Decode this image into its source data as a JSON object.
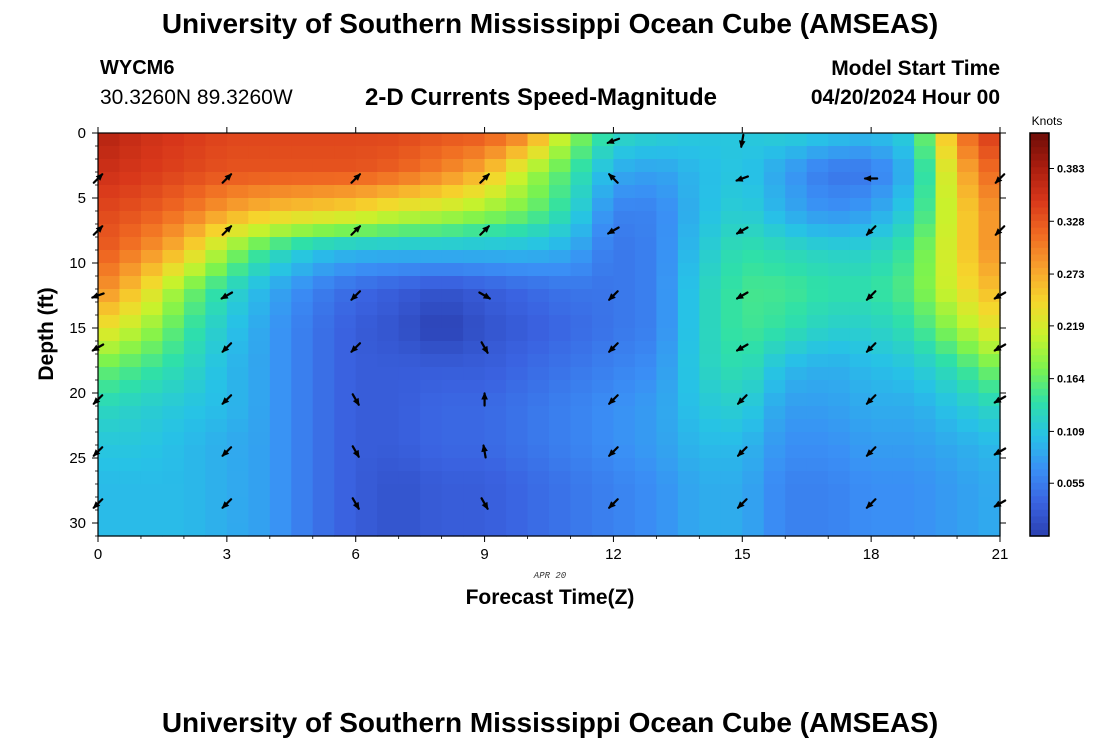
{
  "header": {
    "title": "University of Southern Mississippi Ocean Cube (AMSEAS)",
    "station_id": "WYCM6",
    "station_coords": "30.3260N  89.3260W",
    "subtitle": "2-D Currents Speed-Magnitude",
    "model_start_label": "Model Start Time",
    "model_start_value": "04/20/2024 Hour 00"
  },
  "footer": {
    "title": "University of Southern Mississippi Ocean Cube (AMSEAS)"
  },
  "chart_data": {
    "type": "heatmap",
    "title": "2-D Currents Speed-Magnitude",
    "xlabel": "Forecast Time(Z)",
    "ylabel": "Depth (ft)",
    "date_label": "APR 20",
    "x_range": [
      0,
      21
    ],
    "y_range": [
      0,
      31
    ],
    "x_ticks": [
      0,
      3,
      6,
      9,
      12,
      15,
      18,
      21
    ],
    "y_ticks": [
      0,
      5,
      10,
      15,
      20,
      25,
      30
    ],
    "x_tick_labels": [
      "0",
      "3",
      "6",
      "9",
      "12",
      "15",
      "18",
      "21"
    ],
    "y_tick_labels": [
      "0",
      "5",
      "10",
      "15",
      "20",
      "25",
      "30"
    ],
    "colorbar": {
      "title": "Knots",
      "range": [
        0.0,
        0.42
      ],
      "ticks": [
        0.055,
        0.109,
        0.164,
        0.219,
        0.273,
        0.328,
        0.383
      ],
      "tick_labels": [
        "0.055",
        "0.109",
        "0.164",
        "0.219",
        "0.273",
        "0.328",
        "0.383"
      ]
    },
    "colormap": [
      "#2a3fb0",
      "#3a62e0",
      "#3a8ff5",
      "#27c2e6",
      "#2fe0a8",
      "#7cf34e",
      "#c8f22c",
      "#f6d62c",
      "#f7a12d",
      "#f06a22",
      "#d8371a",
      "#a91d0f",
      "#6e0d08"
    ],
    "grid_times": [
      0,
      1,
      2,
      3,
      4,
      5,
      6,
      7,
      8,
      9,
      10,
      11,
      12,
      13,
      14,
      15,
      16,
      17,
      18,
      19,
      20,
      21
    ],
    "grid_depths": [
      0,
      3,
      6,
      9,
      12,
      15,
      18,
      21,
      24,
      27,
      30
    ],
    "speed_knots": [
      [
        0.38,
        0.36,
        0.35,
        0.34,
        0.34,
        0.34,
        0.34,
        0.34,
        0.33,
        0.33,
        0.3,
        0.19,
        0.13,
        0.12,
        0.11,
        0.11,
        0.12,
        0.11,
        0.1,
        0.12,
        0.3,
        0.36
      ],
      [
        0.36,
        0.35,
        0.34,
        0.33,
        0.33,
        0.33,
        0.33,
        0.32,
        0.3,
        0.27,
        0.2,
        0.15,
        0.09,
        0.08,
        0.1,
        0.11,
        0.08,
        0.05,
        0.05,
        0.1,
        0.26,
        0.33
      ],
      [
        0.34,
        0.33,
        0.31,
        0.28,
        0.26,
        0.25,
        0.24,
        0.22,
        0.21,
        0.19,
        0.17,
        0.13,
        0.06,
        0.06,
        0.1,
        0.12,
        0.09,
        0.07,
        0.08,
        0.12,
        0.24,
        0.3
      ],
      [
        0.33,
        0.3,
        0.26,
        0.19,
        0.14,
        0.11,
        0.1,
        0.1,
        0.1,
        0.1,
        0.1,
        0.09,
        0.05,
        0.06,
        0.11,
        0.14,
        0.13,
        0.12,
        0.12,
        0.15,
        0.24,
        0.3
      ],
      [
        0.3,
        0.25,
        0.18,
        0.13,
        0.09,
        0.06,
        0.04,
        0.03,
        0.02,
        0.03,
        0.04,
        0.05,
        0.05,
        0.06,
        0.12,
        0.15,
        0.15,
        0.14,
        0.14,
        0.16,
        0.23,
        0.27
      ],
      [
        0.24,
        0.2,
        0.15,
        0.11,
        0.08,
        0.05,
        0.03,
        0.02,
        0.0,
        0.02,
        0.03,
        0.04,
        0.05,
        0.06,
        0.12,
        0.15,
        0.14,
        0.12,
        0.12,
        0.14,
        0.19,
        0.24
      ],
      [
        0.17,
        0.15,
        0.13,
        0.1,
        0.08,
        0.05,
        0.03,
        0.03,
        0.03,
        0.03,
        0.04,
        0.05,
        0.06,
        0.07,
        0.12,
        0.14,
        0.1,
        0.09,
        0.1,
        0.11,
        0.14,
        0.18
      ],
      [
        0.13,
        0.12,
        0.11,
        0.1,
        0.08,
        0.05,
        0.03,
        0.03,
        0.04,
        0.04,
        0.05,
        0.06,
        0.07,
        0.08,
        0.11,
        0.12,
        0.08,
        0.08,
        0.09,
        0.09,
        0.11,
        0.13
      ],
      [
        0.11,
        0.11,
        0.1,
        0.09,
        0.08,
        0.05,
        0.03,
        0.03,
        0.04,
        0.04,
        0.05,
        0.06,
        0.07,
        0.08,
        0.1,
        0.1,
        0.07,
        0.07,
        0.08,
        0.08,
        0.09,
        0.1
      ],
      [
        0.1,
        0.1,
        0.1,
        0.09,
        0.08,
        0.05,
        0.03,
        0.02,
        0.03,
        0.03,
        0.04,
        0.05,
        0.06,
        0.07,
        0.09,
        0.09,
        0.06,
        0.06,
        0.07,
        0.07,
        0.08,
        0.09
      ],
      [
        0.1,
        0.1,
        0.1,
        0.09,
        0.08,
        0.05,
        0.03,
        0.02,
        0.03,
        0.03,
        0.04,
        0.05,
        0.06,
        0.07,
        0.09,
        0.09,
        0.06,
        0.06,
        0.07,
        0.07,
        0.08,
        0.09
      ]
    ],
    "vectors": {
      "times": [
        0,
        3,
        6,
        9,
        12,
        15,
        18,
        21
      ],
      "depths": [
        3.5,
        7.5,
        12.5,
        16.5,
        20.5,
        24.5,
        28.5
      ],
      "angles_deg": [
        [
          45,
          45,
          45,
          45,
          135,
          200,
          180,
          225
        ],
        [
          45,
          45,
          45,
          45,
          210,
          210,
          225,
          225
        ],
        [
          200,
          210,
          225,
          330,
          225,
          210,
          225,
          210
        ],
        [
          210,
          225,
          225,
          300,
          225,
          210,
          225,
          210
        ],
        [
          225,
          225,
          300,
          90,
          225,
          225,
          225,
          210
        ],
        [
          225,
          225,
          300,
          100,
          225,
          225,
          225,
          210
        ],
        [
          225,
          225,
          300,
          300,
          225,
          225,
          225,
          210
        ]
      ],
      "surface_angles_deg": [
        null,
        null,
        null,
        null,
        200,
        260,
        null,
        null
      ]
    }
  }
}
